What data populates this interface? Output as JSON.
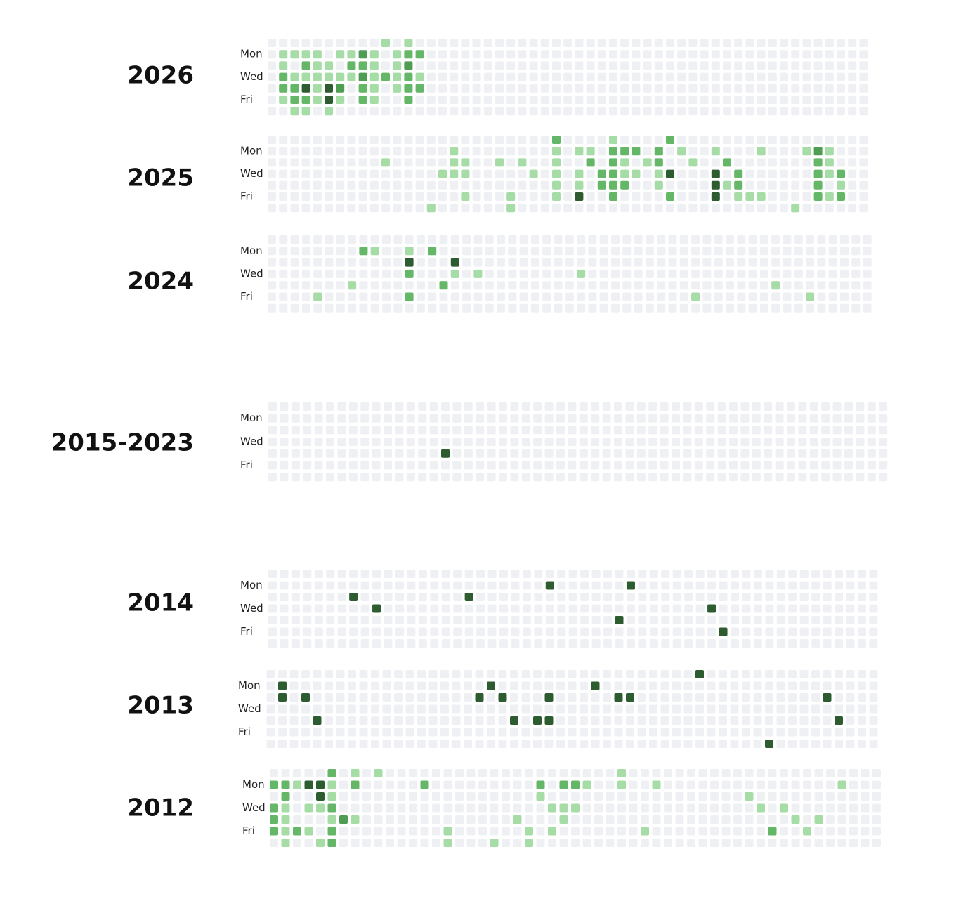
{
  "years": [
    {
      "label": "2026",
      "day_labels": [
        "Mon",
        "Wed",
        "Fri"
      ],
      "cells": [
        [
          10,
          0,
          1
        ],
        [
          12,
          0,
          1
        ],
        [
          1,
          1,
          1
        ],
        [
          2,
          1,
          1
        ],
        [
          3,
          1,
          1
        ],
        [
          4,
          1,
          1
        ],
        [
          6,
          1,
          1
        ],
        [
          7,
          1,
          1
        ],
        [
          8,
          1,
          3
        ],
        [
          9,
          1,
          1
        ],
        [
          11,
          1,
          1
        ],
        [
          12,
          1,
          2
        ],
        [
          13,
          1,
          2
        ],
        [
          1,
          2,
          1
        ],
        [
          3,
          2,
          2
        ],
        [
          4,
          2,
          1
        ],
        [
          5,
          2,
          1
        ],
        [
          7,
          2,
          2
        ],
        [
          8,
          2,
          2
        ],
        [
          9,
          2,
          1
        ],
        [
          11,
          2,
          1
        ],
        [
          12,
          2,
          3
        ],
        [
          1,
          3,
          2
        ],
        [
          2,
          3,
          1
        ],
        [
          3,
          3,
          1
        ],
        [
          4,
          3,
          1
        ],
        [
          5,
          3,
          1
        ],
        [
          6,
          3,
          1
        ],
        [
          7,
          3,
          1
        ],
        [
          8,
          3,
          3
        ],
        [
          9,
          3,
          1
        ],
        [
          10,
          3,
          2
        ],
        [
          11,
          3,
          1
        ],
        [
          12,
          3,
          2
        ],
        [
          13,
          3,
          1
        ],
        [
          1,
          4,
          2
        ],
        [
          2,
          4,
          2
        ],
        [
          3,
          4,
          4
        ],
        [
          4,
          4,
          1
        ],
        [
          5,
          4,
          4
        ],
        [
          6,
          4,
          3
        ],
        [
          8,
          4,
          2
        ],
        [
          9,
          4,
          1
        ],
        [
          11,
          4,
          1
        ],
        [
          12,
          4,
          2
        ],
        [
          13,
          4,
          2
        ],
        [
          1,
          5,
          1
        ],
        [
          2,
          5,
          2
        ],
        [
          3,
          5,
          2
        ],
        [
          4,
          5,
          1
        ],
        [
          5,
          5,
          4
        ],
        [
          6,
          5,
          1
        ],
        [
          8,
          5,
          2
        ],
        [
          9,
          5,
          1
        ],
        [
          12,
          5,
          2
        ],
        [
          2,
          6,
          1
        ],
        [
          3,
          6,
          1
        ],
        [
          5,
          6,
          1
        ]
      ]
    },
    {
      "label": "2025",
      "day_labels": [
        "Mon",
        "Wed",
        "Fri"
      ],
      "cells": [
        [
          25,
          0,
          2
        ],
        [
          30,
          0,
          1
        ],
        [
          35,
          0,
          2
        ],
        [
          16,
          1,
          1
        ],
        [
          25,
          1,
          1
        ],
        [
          27,
          1,
          1
        ],
        [
          28,
          1,
          1
        ],
        [
          30,
          1,
          2
        ],
        [
          31,
          1,
          2
        ],
        [
          32,
          1,
          2
        ],
        [
          34,
          1,
          2
        ],
        [
          36,
          1,
          1
        ],
        [
          39,
          1,
          1
        ],
        [
          43,
          1,
          1
        ],
        [
          47,
          1,
          1
        ],
        [
          48,
          1,
          3
        ],
        [
          49,
          1,
          1
        ],
        [
          10,
          2,
          1
        ],
        [
          16,
          2,
          1
        ],
        [
          17,
          2,
          1
        ],
        [
          20,
          2,
          1
        ],
        [
          22,
          2,
          1
        ],
        [
          25,
          2,
          1
        ],
        [
          28,
          2,
          2
        ],
        [
          30,
          2,
          2
        ],
        [
          31,
          2,
          1
        ],
        [
          33,
          2,
          1
        ],
        [
          34,
          2,
          2
        ],
        [
          37,
          2,
          1
        ],
        [
          40,
          2,
          2
        ],
        [
          48,
          2,
          2
        ],
        [
          49,
          2,
          1
        ],
        [
          15,
          3,
          1
        ],
        [
          16,
          3,
          1
        ],
        [
          17,
          3,
          1
        ],
        [
          23,
          3,
          1
        ],
        [
          25,
          3,
          1
        ],
        [
          27,
          3,
          1
        ],
        [
          29,
          3,
          2
        ],
        [
          30,
          3,
          2
        ],
        [
          31,
          3,
          1
        ],
        [
          32,
          3,
          1
        ],
        [
          34,
          3,
          1
        ],
        [
          35,
          3,
          4
        ],
        [
          39,
          3,
          4
        ],
        [
          41,
          3,
          2
        ],
        [
          48,
          3,
          2
        ],
        [
          49,
          3,
          1
        ],
        [
          50,
          3,
          2
        ],
        [
          25,
          4,
          1
        ],
        [
          27,
          4,
          1
        ],
        [
          29,
          4,
          2
        ],
        [
          30,
          4,
          2
        ],
        [
          31,
          4,
          2
        ],
        [
          34,
          4,
          1
        ],
        [
          39,
          4,
          4
        ],
        [
          40,
          4,
          1
        ],
        [
          41,
          4,
          2
        ],
        [
          48,
          4,
          2
        ],
        [
          50,
          4,
          1
        ],
        [
          17,
          5,
          1
        ],
        [
          21,
          5,
          1
        ],
        [
          25,
          5,
          1
        ],
        [
          27,
          5,
          4
        ],
        [
          30,
          5,
          2
        ],
        [
          35,
          5,
          2
        ],
        [
          39,
          5,
          4
        ],
        [
          41,
          5,
          1
        ],
        [
          42,
          5,
          1
        ],
        [
          43,
          5,
          1
        ],
        [
          48,
          5,
          2
        ],
        [
          49,
          5,
          1
        ],
        [
          50,
          5,
          2
        ],
        [
          14,
          6,
          1
        ],
        [
          21,
          6,
          1
        ],
        [
          46,
          6,
          1
        ]
      ]
    },
    {
      "label": "2024",
      "day_labels": [
        "Mon",
        "Wed",
        "Fri"
      ],
      "cells": [
        [
          8,
          1,
          2
        ],
        [
          9,
          1,
          1
        ],
        [
          12,
          1,
          1
        ],
        [
          14,
          1,
          2
        ],
        [
          12,
          2,
          4
        ],
        [
          16,
          2,
          4
        ],
        [
          12,
          3,
          2
        ],
        [
          16,
          3,
          1
        ],
        [
          18,
          3,
          1
        ],
        [
          27,
          3,
          1
        ],
        [
          7,
          4,
          1
        ],
        [
          15,
          4,
          2
        ],
        [
          44,
          4,
          1
        ],
        [
          4,
          5,
          1
        ],
        [
          12,
          5,
          2
        ],
        [
          37,
          5,
          1
        ],
        [
          47,
          5,
          1
        ]
      ]
    },
    {
      "label": "2015-2023",
      "day_labels": [
        "Mon",
        "Wed",
        "Fri"
      ],
      "cells": [
        [
          15,
          4,
          4
        ]
      ]
    },
    {
      "label": "2014",
      "day_labels": [
        "Mon",
        "Wed",
        "Fri"
      ],
      "cells": [
        [
          24,
          1,
          4
        ],
        [
          31,
          1,
          4
        ],
        [
          7,
          2,
          4
        ],
        [
          17,
          2,
          4
        ],
        [
          9,
          3,
          4
        ],
        [
          38,
          3,
          4
        ],
        [
          30,
          4,
          4
        ],
        [
          39,
          5,
          4
        ]
      ]
    },
    {
      "label": "2013",
      "day_labels": [
        "Mon",
        "Wed",
        "Fri"
      ],
      "cells": [
        [
          37,
          0,
          4
        ],
        [
          1,
          1,
          4
        ],
        [
          19,
          1,
          4
        ],
        [
          28,
          1,
          4
        ],
        [
          1,
          2,
          4
        ],
        [
          3,
          2,
          4
        ],
        [
          18,
          2,
          4
        ],
        [
          20,
          2,
          4
        ],
        [
          24,
          2,
          4
        ],
        [
          30,
          2,
          4
        ],
        [
          31,
          2,
          4
        ],
        [
          48,
          2,
          4
        ],
        [
          4,
          4,
          4
        ],
        [
          21,
          4,
          4
        ],
        [
          23,
          4,
          4
        ],
        [
          24,
          4,
          4
        ],
        [
          49,
          4,
          4
        ],
        [
          43,
          6,
          4
        ]
      ]
    },
    {
      "label": "2012",
      "day_labels": [
        "Mon",
        "Wed",
        "Fri"
      ],
      "cells": [
        [
          5,
          0,
          2
        ],
        [
          7,
          0,
          1
        ],
        [
          9,
          0,
          1
        ],
        [
          30,
          0,
          1
        ],
        [
          0,
          1,
          2
        ],
        [
          1,
          1,
          2
        ],
        [
          2,
          1,
          1
        ],
        [
          3,
          1,
          4
        ],
        [
          4,
          1,
          4
        ],
        [
          5,
          1,
          1
        ],
        [
          7,
          1,
          2
        ],
        [
          13,
          1,
          2
        ],
        [
          23,
          1,
          2
        ],
        [
          25,
          1,
          2
        ],
        [
          26,
          1,
          2
        ],
        [
          27,
          1,
          1
        ],
        [
          30,
          1,
          1
        ],
        [
          33,
          1,
          1
        ],
        [
          49,
          1,
          1
        ],
        [
          1,
          2,
          2
        ],
        [
          4,
          2,
          4
        ],
        [
          5,
          2,
          1
        ],
        [
          23,
          2,
          1
        ],
        [
          41,
          2,
          1
        ],
        [
          0,
          3,
          2
        ],
        [
          1,
          3,
          1
        ],
        [
          3,
          3,
          1
        ],
        [
          4,
          3,
          1
        ],
        [
          5,
          3,
          2
        ],
        [
          24,
          3,
          1
        ],
        [
          25,
          3,
          1
        ],
        [
          26,
          3,
          1
        ],
        [
          42,
          3,
          1
        ],
        [
          44,
          3,
          1
        ],
        [
          0,
          4,
          2
        ],
        [
          1,
          4,
          1
        ],
        [
          5,
          4,
          1
        ],
        [
          6,
          4,
          3
        ],
        [
          7,
          4,
          1
        ],
        [
          21,
          4,
          1
        ],
        [
          25,
          4,
          1
        ],
        [
          45,
          4,
          1
        ],
        [
          47,
          4,
          1
        ],
        [
          0,
          5,
          2
        ],
        [
          1,
          5,
          1
        ],
        [
          2,
          5,
          2
        ],
        [
          3,
          5,
          1
        ],
        [
          5,
          5,
          2
        ],
        [
          15,
          5,
          1
        ],
        [
          22,
          5,
          1
        ],
        [
          24,
          5,
          1
        ],
        [
          32,
          5,
          1
        ],
        [
          43,
          5,
          2
        ],
        [
          46,
          5,
          1
        ],
        [
          1,
          6,
          1
        ],
        [
          4,
          6,
          1
        ],
        [
          5,
          6,
          2
        ],
        [
          15,
          6,
          1
        ],
        [
          19,
          6,
          1
        ],
        [
          22,
          6,
          1
        ]
      ]
    }
  ]
}
